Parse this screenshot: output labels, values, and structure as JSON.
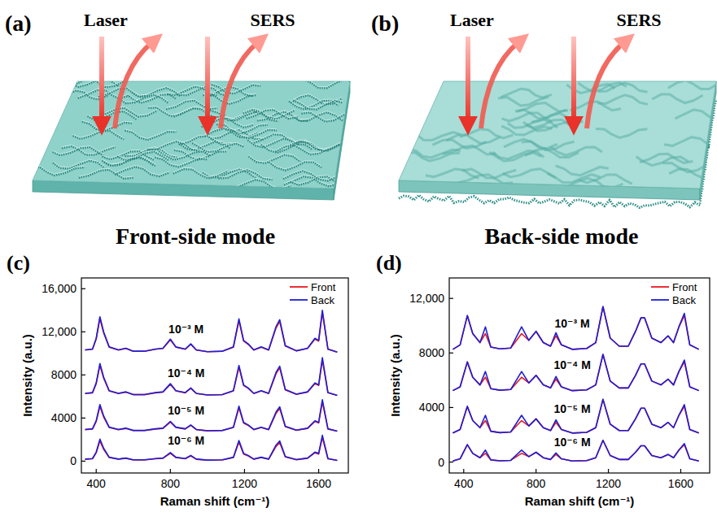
{
  "diagram": {
    "panels": [
      {
        "letter": "(a)",
        "laser": "Laser",
        "signal": "SERS",
        "caption": "Front-side mode"
      },
      {
        "letter": "(b)",
        "laser": "Laser",
        "signal": "SERS",
        "caption": "Back-side mode"
      }
    ]
  },
  "chart_data": [
    {
      "type": "line",
      "title": "(c)",
      "x_label": "Raman shift (cm⁻¹)",
      "y_label": "Intensity (a.u.)",
      "x": [
        340,
        380,
        400,
        420,
        440,
        470,
        520,
        560,
        600,
        660,
        720,
        760,
        800,
        830,
        880,
        910,
        940,
        1000,
        1080,
        1140,
        1170,
        1195,
        1220,
        1250,
        1290,
        1330,
        1370,
        1390,
        1420,
        1480,
        1540,
        1580,
        1600,
        1620,
        1650,
        1700
      ],
      "series": [
        {
          "name": "Front",
          "color": "#e8191e",
          "values": [
            10304,
            10380,
            11330,
            13230,
            11900,
            10570,
            10304,
            10456,
            10190,
            10190,
            10380,
            10456,
            11254,
            10570,
            10380,
            10836,
            10304,
            10152,
            10190,
            10570,
            13040,
            11140,
            10836,
            10304,
            10570,
            10304,
            12356,
            12964,
            10684,
            10228,
            10456,
            11330,
            11140,
            13800,
            10380,
            10114
          ]
        },
        {
          "name": "Back",
          "color": "#1f1fd6",
          "values": [
            10320,
            10400,
            11400,
            13400,
            12000,
            10600,
            10320,
            10480,
            10200,
            10200,
            10400,
            10480,
            11320,
            10600,
            10400,
            10880,
            10320,
            10160,
            10200,
            10600,
            13200,
            11200,
            10880,
            10320,
            10600,
            10320,
            12480,
            13120,
            10720,
            10240,
            10480,
            11400,
            11200,
            14000,
            10400,
            10120
          ]
        },
        {
          "name": "Front",
          "color": "#e8191e",
          "values": [
            6272,
            6340,
            7190,
            8890,
            7700,
            6510,
            6272,
            6408,
            6170,
            6170,
            6340,
            6408,
            7122,
            6510,
            6340,
            6748,
            6272,
            6136,
            6170,
            6510,
            8720,
            7020,
            6748,
            6272,
            6510,
            6272,
            8108,
            8652,
            6612,
            6204,
            6408,
            7190,
            7020,
            9400,
            6340,
            6102
          ]
        },
        {
          "name": "Back",
          "color": "#1f1fd6",
          "values": [
            6288,
            6360,
            7260,
            9060,
            7800,
            6540,
            6288,
            6432,
            6180,
            6180,
            6360,
            6432,
            7188,
            6540,
            6360,
            6792,
            6288,
            6144,
            6180,
            6540,
            8880,
            7080,
            6792,
            6288,
            6540,
            6288,
            8232,
            8808,
            6648,
            6216,
            6432,
            7260,
            7080,
            9600,
            6360,
            6108
          ]
        },
        {
          "name": "Front",
          "color": "#e8191e",
          "values": [
            2924,
            2980,
            3680,
            5080,
            4100,
            3120,
            2924,
            3036,
            2840,
            2840,
            2980,
            3036,
            3624,
            3120,
            2980,
            3316,
            2924,
            2812,
            2840,
            3120,
            4940,
            3540,
            3316,
            2924,
            3120,
            2924,
            4436,
            4884,
            3204,
            2868,
            3036,
            3680,
            3540,
            5500,
            2980,
            2784
          ]
        },
        {
          "name": "Back",
          "color": "#1f1fd6",
          "values": [
            2940,
            3000,
            3750,
            5250,
            4200,
            3150,
            2940,
            3060,
            2850,
            2850,
            3000,
            3060,
            3690,
            3150,
            3000,
            3360,
            2940,
            2820,
            2850,
            3150,
            5100,
            3600,
            3360,
            2940,
            3150,
            2940,
            4560,
            5040,
            3240,
            2880,
            3060,
            3750,
            3600,
            5700,
            3000,
            2790
          ]
        },
        {
          "name": "Front",
          "color": "#e8191e",
          "values": [
            176,
            220,
            770,
            1870,
            1100,
            330,
            176,
            264,
            110,
            110,
            220,
            264,
            726,
            330,
            220,
            484,
            176,
            88,
            110,
            330,
            1760,
            660,
            484,
            176,
            330,
            176,
            1364,
            1716,
            396,
            132,
            264,
            770,
            660,
            2200,
            220,
            66
          ]
        },
        {
          "name": "Back",
          "color": "#1f1fd6",
          "values": [
            192,
            240,
            840,
            2040,
            1200,
            360,
            192,
            288,
            120,
            120,
            240,
            288,
            792,
            360,
            240,
            528,
            192,
            96,
            120,
            360,
            1920,
            720,
            528,
            192,
            360,
            192,
            1488,
            1872,
            432,
            144,
            288,
            840,
            720,
            2400,
            240,
            72
          ]
        }
      ],
      "annotations": [
        {
          "text": "10⁻³ M",
          "x": 885,
          "y": 12250
        },
        {
          "text": "10⁻⁴ M",
          "x": 885,
          "y": 8200
        },
        {
          "text": "10⁻⁵ M",
          "x": 885,
          "y": 4700
        },
        {
          "text": "10⁻⁶ M",
          "x": 885,
          "y": 1900
        }
      ],
      "xlim": [
        320,
        1760
      ],
      "ylim": [
        -1100,
        17000
      ],
      "xticks": [
        400,
        800,
        1200,
        1600
      ],
      "yticks": [
        0,
        4000,
        8000,
        {
          "value": 12000,
          "label": "12,000"
        },
        {
          "value": 16000,
          "label": "16,000"
        }
      ],
      "legend": "top-right"
    },
    {
      "type": "line",
      "title": "(d)",
      "x_label": "Raman shift (cm⁻¹)",
      "y_label": "Intensity (a.u.)",
      "x": [
        340,
        380,
        420,
        450,
        490,
        520,
        550,
        600,
        660,
        720,
        760,
        800,
        840,
        880,
        910,
        940,
        1000,
        1080,
        1130,
        1170,
        1210,
        1260,
        1310,
        1350,
        1380,
        1400,
        1440,
        1490,
        1530,
        1560,
        1590,
        1620,
        1650,
        1700
      ],
      "series": [
        {
          "name": "Front",
          "color": "#e8191e",
          "values": [
            8265,
            8595,
            10740,
            9420,
            8760,
            9420,
            8430,
            8298,
            8364,
            9420,
            8925,
            9585,
            8760,
            8496,
            9255,
            8595,
            8265,
            8331,
            8760,
            11400,
            9090,
            8496,
            8496,
            9585,
            10575,
            10575,
            9090,
            8760,
            9255,
            8760,
            9915,
            10740,
            8595,
            8265
          ]
        },
        {
          "name": "Back",
          "color": "#1f1fd6",
          "values": [
            8265,
            8595,
            10740,
            9420,
            8760,
            9915,
            8430,
            8298,
            8364,
            9915,
            8925,
            9585,
            8760,
            8496,
            9486,
            8595,
            8265,
            8331,
            8760,
            11400,
            9090,
            8496,
            8496,
            9585,
            10575,
            10575,
            9090,
            8760,
            9255,
            8760,
            9915,
            10905,
            8595,
            8265
          ]
        },
        {
          "name": "Front",
          "color": "#e8191e",
          "values": [
            5240,
            5520,
            7340,
            6220,
            5660,
            6220,
            5380,
            5268,
            5324,
            6220,
            5800,
            6360,
            5660,
            5436,
            6080,
            5520,
            5240,
            5296,
            5660,
            7900,
            5940,
            5436,
            5436,
            6360,
            7200,
            7200,
            5940,
            5660,
            6080,
            5660,
            6640,
            7340,
            5520,
            5240
          ]
        },
        {
          "name": "Back",
          "color": "#1f1fd6",
          "values": [
            5240,
            5520,
            7340,
            6220,
            5660,
            6640,
            5380,
            5268,
            5324,
            6640,
            5800,
            6360,
            5660,
            5436,
            6276,
            5520,
            5240,
            5296,
            5660,
            7900,
            5940,
            5436,
            5436,
            6360,
            7200,
            7200,
            5940,
            5660,
            6080,
            5660,
            6640,
            7480,
            5520,
            5240
          ]
        },
        {
          "name": "Front",
          "color": "#e8191e",
          "values": [
            2130,
            2390,
            4080,
            3040,
            2520,
            3040,
            2260,
            2156,
            2208,
            3040,
            2650,
            3170,
            2520,
            2312,
            2910,
            2390,
            2130,
            2182,
            2520,
            4600,
            2780,
            2312,
            2312,
            3170,
            3950,
            3950,
            2780,
            2520,
            2910,
            2520,
            3430,
            4080,
            2390,
            2130
          ]
        },
        {
          "name": "Back",
          "color": "#1f1fd6",
          "values": [
            2130,
            2390,
            4080,
            3040,
            2520,
            3430,
            2260,
            2156,
            2208,
            3430,
            2650,
            3170,
            2520,
            2312,
            3092,
            2390,
            2130,
            2182,
            2520,
            4600,
            2780,
            2312,
            2312,
            3170,
            3950,
            3950,
            2780,
            2520,
            2910,
            2520,
            3430,
            4210,
            2390,
            2130
          ]
        },
        {
          "name": "Front",
          "color": "#e8191e",
          "values": [
            80,
            240,
            1280,
            640,
            320,
            640,
            160,
            96,
            128,
            640,
            400,
            720,
            320,
            192,
            560,
            240,
            80,
            112,
            320,
            1600,
            480,
            192,
            192,
            720,
            1200,
            1200,
            480,
            320,
            560,
            320,
            880,
            1280,
            240,
            80
          ]
        },
        {
          "name": "Back",
          "color": "#1f1fd6",
          "values": [
            80,
            240,
            1280,
            640,
            320,
            880,
            160,
            96,
            128,
            880,
            400,
            720,
            320,
            192,
            672,
            240,
            80,
            112,
            320,
            1600,
            480,
            192,
            192,
            720,
            1200,
            1200,
            480,
            320,
            560,
            320,
            880,
            1360,
            240,
            80
          ]
        }
      ],
      "annotations": [
        {
          "text": "10⁻³ M",
          "x": 1000,
          "y": 10150
        },
        {
          "text": "10⁻⁴ M",
          "x": 1000,
          "y": 7100
        },
        {
          "text": "10⁻⁵ M",
          "x": 1000,
          "y": 3900
        },
        {
          "text": "10⁻⁶ M",
          "x": 1000,
          "y": 1450
        }
      ],
      "xlim": [
        320,
        1760
      ],
      "ylim": [
        -800,
        13500
      ],
      "xticks": [
        400,
        800,
        1200,
        1600
      ],
      "yticks": [
        0,
        4000,
        8000,
        {
          "value": 12000,
          "label": "12,000"
        }
      ],
      "legend": "top-right"
    }
  ]
}
